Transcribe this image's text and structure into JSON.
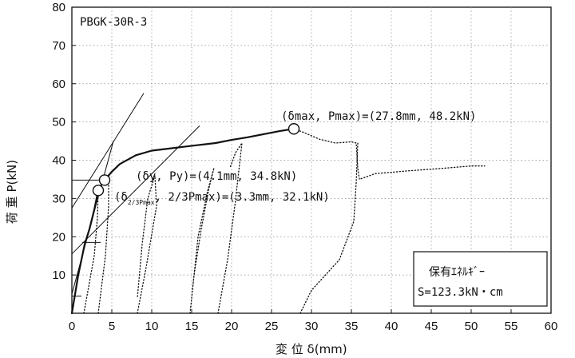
{
  "chart_data": {
    "type": "line",
    "title": "PBGK-30R-3",
    "xlabel": "変 位 δ(mm)",
    "ylabel": "荷 重 P(kN)",
    "xlim": [
      0,
      60
    ],
    "ylim": [
      0,
      80
    ],
    "xticks": [
      0,
      5,
      10,
      15,
      20,
      25,
      30,
      35,
      40,
      45,
      50,
      55,
      60
    ],
    "yticks": [
      10,
      20,
      30,
      40,
      50,
      60,
      70,
      80
    ],
    "grid": true,
    "series": [
      {
        "style": "solid",
        "color": "#111111",
        "points": [
          [
            0,
            0
          ],
          [
            0.8,
            10
          ],
          [
            1.6,
            18
          ],
          [
            2.2,
            22
          ],
          [
            2.8,
            27
          ],
          [
            3.3,
            32.1
          ],
          [
            3.7,
            33.5
          ],
          [
            4.1,
            34.8
          ],
          [
            5,
            37
          ],
          [
            6,
            39
          ],
          [
            8,
            41.3
          ],
          [
            10,
            42.5
          ],
          [
            12,
            43
          ],
          [
            14,
            43.5
          ],
          [
            16,
            44
          ],
          [
            18,
            44.5
          ],
          [
            20,
            45.3
          ],
          [
            22,
            46
          ],
          [
            24,
            46.8
          ],
          [
            26,
            47.6
          ],
          [
            27.8,
            48.2
          ]
        ]
      },
      {
        "style": "dotted",
        "color": "#111111",
        "points": [
          [
            27.8,
            48.2
          ],
          [
            29,
            47.3
          ],
          [
            31,
            45.5
          ],
          [
            33,
            44.5
          ],
          [
            35,
            44.8
          ],
          [
            35.6,
            44.5
          ],
          [
            35.8,
            38
          ],
          [
            36,
            35
          ],
          [
            38,
            36.5
          ],
          [
            42,
            37.2
          ],
          [
            46,
            37.8
          ],
          [
            50,
            38.5
          ],
          [
            51.7,
            38.5
          ]
        ]
      },
      {
        "style": "dotted",
        "color": "#111111",
        "points": [
          [
            1.5,
            0
          ],
          [
            2.8,
            15
          ],
          [
            3.2,
            25
          ],
          [
            3.3,
            32
          ]
        ]
      },
      {
        "style": "dotted",
        "color": "#111111",
        "points": [
          [
            3.3,
            0
          ],
          [
            4.2,
            15
          ],
          [
            4.6,
            28
          ],
          [
            4.6,
            36
          ]
        ]
      },
      {
        "style": "dotted",
        "color": "#111111",
        "points": [
          [
            8.2,
            0
          ],
          [
            9.3,
            12
          ],
          [
            10.6,
            28
          ],
          [
            10.4,
            36
          ],
          [
            9.5,
            30
          ],
          [
            8.8,
            18
          ],
          [
            8.2,
            4
          ]
        ]
      },
      {
        "style": "dotted",
        "color": "#111111",
        "points": [
          [
            14.8,
            0
          ],
          [
            15.3,
            10
          ],
          [
            16.2,
            22
          ],
          [
            17.2,
            33
          ],
          [
            17.8,
            38
          ],
          [
            17,
            32
          ],
          [
            15.8,
            20
          ],
          [
            15.1,
            6
          ]
        ]
      },
      {
        "style": "dotted",
        "color": "#111111",
        "points": [
          [
            18.3,
            0
          ],
          [
            19.5,
            14
          ],
          [
            20.4,
            28
          ],
          [
            21.3,
            44.5
          ],
          [
            20.5,
            42
          ],
          [
            19.8,
            38
          ]
        ]
      },
      {
        "style": "dotted",
        "color": "#111111",
        "points": [
          [
            28.6,
            0
          ],
          [
            30,
            6
          ],
          [
            33.5,
            14
          ],
          [
            35.3,
            24
          ],
          [
            35.6,
            34
          ],
          [
            35.8,
            44.5
          ]
        ]
      }
    ],
    "guide_lines": [
      {
        "from": [
          0,
          27.5
        ],
        "to": [
          9,
          57.5
        ]
      },
      {
        "from": [
          0,
          15.5
        ],
        "to": [
          16,
          49
        ]
      },
      {
        "from": [
          0,
          5
        ],
        "to": [
          5.2,
          45
        ]
      },
      {
        "from": [
          0,
          34.8
        ],
        "to": [
          3.8,
          34.8
        ]
      },
      {
        "from": [
          0,
          4.5
        ],
        "to": [
          1.2,
          4.5
        ]
      },
      {
        "from": [
          1.3,
          18.5
        ],
        "to": [
          3.6,
          18.5
        ]
      }
    ],
    "markers": [
      {
        "x": 27.8,
        "y": 48.2
      },
      {
        "x": 4.1,
        "y": 34.8
      },
      {
        "x": 3.3,
        "y": 32.1
      }
    ],
    "annotations": {
      "pmax": "(δmax, Pmax)=(27.8mm, 48.2kN)",
      "py": "(δy, Py)=(4.1mm, 34.8kN)",
      "p23_prefix": "(δ",
      "p23_sub": "2/3Pmax",
      "p23_rest": ", 2/3Pmax)=(3.3mm, 32.1kN)"
    },
    "legend": {
      "title": "保有ｴﾈﾙｷﾞｰ",
      "value": "S=123.3kN・cm",
      "placement": "bottom-right"
    }
  }
}
